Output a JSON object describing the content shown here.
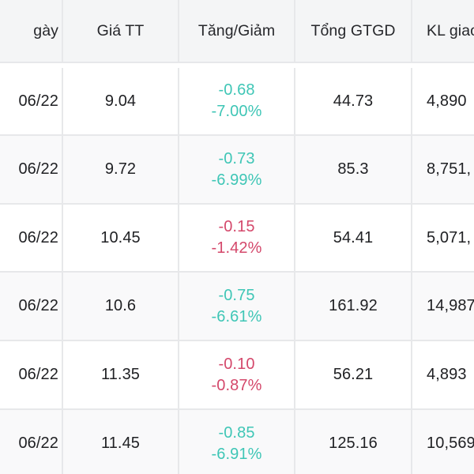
{
  "headers": [
    "gày",
    "Giá TT",
    "Tăng/Giảm",
    "Tổng GTGD",
    "KL giao"
  ],
  "rows": [
    {
      "date": "06/22",
      "price": "9.04",
      "change": "-0.68",
      "percent": "-7.00%",
      "direction": "up",
      "value": "44.73",
      "volume": "4,890"
    },
    {
      "date": "06/22",
      "price": "9.72",
      "change": "-0.73",
      "percent": "-6.99%",
      "direction": "up",
      "value": "85.3",
      "volume": "8,751,"
    },
    {
      "date": "06/22",
      "price": "10.45",
      "change": "-0.15",
      "percent": "-1.42%",
      "direction": "down",
      "value": "54.41",
      "volume": "5,071,"
    },
    {
      "date": "06/22",
      "price": "10.6",
      "change": "-0.75",
      "percent": "-6.61%",
      "direction": "up",
      "value": "161.92",
      "volume": "14,987"
    },
    {
      "date": "06/22",
      "price": "11.35",
      "change": "-0.10",
      "percent": "-0.87%",
      "direction": "down",
      "value": "56.21",
      "volume": "4,893"
    },
    {
      "date": "06/22",
      "price": "11.45",
      "change": "-0.85",
      "percent": "-6.91%",
      "direction": "up",
      "value": "125.16",
      "volume": "10,569"
    }
  ],
  "colors": {
    "change_teal": "#3fc6b6",
    "change_red": "#d4486b",
    "header_bg": "#f4f5f6",
    "border": "#e7e8ea"
  }
}
